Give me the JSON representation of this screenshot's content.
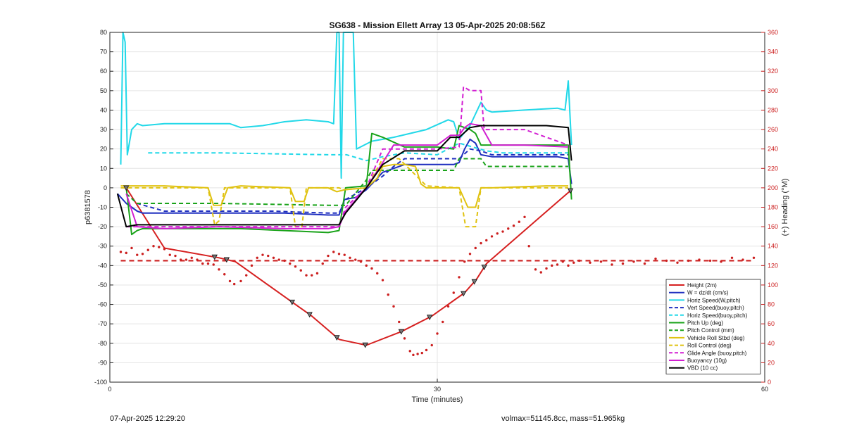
{
  "chart_data": {
    "type": "line",
    "title": "SG638 - Mission Ellett Array 13 05-Apr-2025 20:08:56Z",
    "xlabel": "Time (minutes)",
    "ylabel": "p6381578",
    "ylabel_right": "(+) Heading (°M)",
    "xlim": [
      0,
      60
    ],
    "ylim": [
      -100,
      80
    ],
    "ylim_right": [
      0,
      360
    ],
    "x_ticks": [
      0,
      30,
      60
    ],
    "y_ticks": [
      -100,
      -90,
      -80,
      -70,
      -60,
      -50,
      -40,
      -30,
      -20,
      -10,
      0,
      10,
      20,
      30,
      40,
      50,
      60,
      70,
      80
    ],
    "y_ticks_right": [
      0,
      20,
      40,
      60,
      80,
      100,
      120,
      140,
      160,
      180,
      200,
      220,
      240,
      260,
      280,
      300,
      320,
      340,
      360
    ],
    "grid": true,
    "legend_position": "bottom-right",
    "series": [
      {
        "name": "Height (2m)",
        "color": "#d62020",
        "style": "solid",
        "markers": "triangle",
        "x": [
          1.5,
          5,
          10,
          11.5,
          17,
          18.5,
          21,
          23.5,
          26.7,
          29.5,
          32.5,
          33.6,
          34.5,
          42.3
        ],
        "y": [
          0,
          -31,
          -36,
          -38,
          -60,
          -66,
          -78,
          -81,
          -74,
          -66,
          -54,
          -47,
          -39,
          -1
        ],
        "marker_x": [
          1.5,
          9.6,
          10.7,
          16.7,
          18.3,
          20.8,
          23.4,
          26.7,
          29.3,
          32.4,
          33.4,
          34.3,
          42.2
        ]
      },
      {
        "name": "W = dz/dt (cm/s)",
        "color": "#1f2fbf",
        "style": "solid",
        "x": [
          0.7,
          1.5,
          2.5,
          3,
          8,
          12,
          16,
          20,
          21,
          21.5,
          22.5,
          23.5,
          25,
          27,
          30,
          31.5,
          32,
          32.5,
          33,
          33.5,
          34,
          35,
          38,
          41,
          42,
          42.3
        ],
        "y": [
          -3,
          -8,
          -12,
          -13,
          -13,
          -13,
          -13,
          -14,
          -14,
          -6,
          -5,
          -1,
          8,
          12,
          12,
          12,
          13,
          20,
          25,
          23,
          17,
          16,
          16,
          16,
          15,
          2
        ]
      },
      {
        "name": "Horiz Speed(W,pitch)",
        "color": "#22d8e8",
        "style": "solid",
        "x": [
          1.0,
          1.2,
          1.4,
          1.6,
          2.0,
          2.5,
          3,
          5,
          8,
          11,
          12,
          14,
          16,
          18,
          20,
          20.5,
          20.8,
          21,
          21.2,
          21.4,
          22,
          22.3,
          22.6,
          24,
          26,
          29,
          31,
          31.5,
          32,
          33,
          34,
          34.5,
          35,
          38,
          41,
          41.7,
          42,
          42.3
        ],
        "y": [
          12,
          80,
          75,
          17,
          30,
          33,
          32,
          33,
          33,
          33,
          31,
          32,
          34,
          35,
          34,
          33,
          80,
          80,
          5,
          80,
          80,
          80,
          20,
          24,
          26,
          30,
          35,
          34,
          25,
          32,
          44,
          40,
          39,
          40,
          41,
          40,
          55,
          22
        ]
      },
      {
        "name": "Vert Speed(buoy,pitch)",
        "color": "#1f2fbf",
        "style": "dashed",
        "x": [
          1.5,
          2.5,
          5,
          10,
          15,
          20,
          21,
          21.6,
          23.5,
          25,
          26,
          27,
          30,
          31.5,
          32,
          33,
          34,
          35,
          37,
          42
        ],
        "y": [
          -3,
          -8,
          -12,
          -12,
          -12,
          -13,
          -13,
          -6,
          0,
          6,
          11,
          15,
          15,
          15,
          15,
          20,
          19,
          17,
          17,
          17
        ]
      },
      {
        "name": "Horiz Speed(buoy,pitch)",
        "color": "#22d8e8",
        "style": "dashed",
        "x": [
          3.5,
          10,
          20,
          21.7,
          23.5,
          25,
          27,
          30,
          32,
          34.5,
          36,
          42
        ],
        "y": [
          18,
          18,
          17,
          17,
          14,
          16,
          18,
          17,
          23,
          19,
          18,
          18
        ]
      },
      {
        "name": "Pitch Up (deg)",
        "color": "#1aa31a",
        "style": "solid",
        "x": [
          1.5,
          2.0,
          2.5,
          3,
          8,
          12,
          16,
          20,
          21,
          21.6,
          23.5,
          24,
          25,
          27,
          30,
          31.5,
          32,
          33,
          33.5,
          34,
          35,
          38,
          42,
          42.3
        ],
        "y": [
          0,
          -24,
          -22,
          -21,
          -21,
          -21,
          -22,
          -23,
          -22,
          0,
          1,
          28,
          26,
          21,
          21,
          20,
          32,
          30,
          28,
          22,
          22,
          22,
          22,
          -6
        ]
      },
      {
        "name": "Pitch Control (mm)",
        "color": "#1aa31a",
        "style": "dashed",
        "x": [
          1.5,
          2.5,
          10,
          20,
          21.6,
          23.5,
          24,
          25,
          29,
          31.5,
          32,
          34,
          34.5,
          42
        ],
        "y": [
          -3,
          -8,
          -8,
          -9,
          -9,
          4,
          9,
          9,
          9,
          9,
          15,
          15,
          11,
          11
        ]
      },
      {
        "name": "Vehicle Roll Stbd (deg)",
        "color": "#e0c210",
        "style": "solid",
        "x": [
          1,
          5,
          9,
          9.5,
          10.2,
          10.8,
          12,
          16.5,
          17,
          17.8,
          18.2,
          18.8,
          20,
          20.8,
          21.5,
          23.5,
          24.5,
          25,
          26,
          27,
          28,
          28.5,
          29,
          32,
          32.8,
          33.5,
          34,
          35,
          40,
          42
        ],
        "y": [
          1,
          1,
          0,
          -9,
          -9,
          0,
          1,
          0,
          -7,
          -7,
          0,
          0,
          0,
          -2,
          -1,
          0,
          5,
          11,
          12,
          12,
          11,
          2,
          0,
          0,
          -10,
          -10,
          0,
          0,
          1,
          1
        ]
      },
      {
        "name": "Roll Control (deg)",
        "color": "#e0c210",
        "style": "dashed",
        "x": [
          1,
          9,
          9.6,
          10.0,
          10.5,
          16.5,
          17.0,
          17.6,
          18.0,
          21.0,
          21.4,
          23.5,
          25,
          26.5,
          29,
          32,
          32.6,
          33.5,
          34,
          42
        ],
        "y": [
          0,
          0,
          -19,
          -17,
          0,
          0,
          -20,
          -20,
          0,
          0,
          -1,
          0,
          15,
          15,
          1,
          0,
          -20,
          -20,
          0,
          0
        ]
      },
      {
        "name": "Glide Angle (buoy,pitch)",
        "color": "#d21fd2",
        "style": "dashed",
        "x": [
          1.5,
          2.5,
          10,
          20,
          21,
          21.6,
          23.5,
          25,
          30,
          32,
          32.4,
          33,
          34,
          34.3,
          35,
          38,
          42
        ],
        "y": [
          -20,
          -20,
          -20,
          -20,
          -20,
          -10,
          0,
          20,
          20,
          21,
          52,
          50,
          50,
          30,
          30,
          30,
          22
        ]
      },
      {
        "name": "Buoyancy (10g)",
        "color": "#d21fd2",
        "style": "solid",
        "x": [
          1.5,
          2.5,
          5,
          10,
          16,
          20,
          21,
          21.6,
          23.5,
          25,
          26,
          30,
          31.2,
          32,
          32.5,
          33,
          34,
          35,
          38,
          42
        ],
        "y": [
          -3,
          -20,
          -21,
          -20,
          -21,
          -21,
          -20,
          -12,
          0,
          13,
          22,
          22,
          27,
          27,
          31,
          33,
          32,
          22,
          22,
          21
        ]
      },
      {
        "name": "VBD (10 cc)",
        "color": "#000000",
        "style": "solid",
        "x": [
          0.7,
          1.5,
          2.5,
          10,
          20,
          21.0,
          21.6,
          23.5,
          25,
          27,
          30,
          31.2,
          32,
          33,
          34,
          36,
          40,
          42,
          42.3
        ],
        "y": [
          -3,
          -20,
          -19,
          -19,
          -19,
          -19,
          -13,
          0,
          12,
          19,
          19,
          26,
          26,
          31,
          32,
          32,
          32,
          31,
          14
        ]
      }
    ],
    "heading_series": {
      "name": "Heading",
      "color": "#cc1f1f",
      "points": [
        [
          1.0,
          134
        ],
        [
          1.5,
          133
        ],
        [
          2.0,
          138
        ],
        [
          2.5,
          131
        ],
        [
          3,
          132
        ],
        [
          3.5,
          136
        ],
        [
          4,
          140
        ],
        [
          4.5,
          139
        ],
        [
          5,
          137
        ],
        [
          5.5,
          131
        ],
        [
          6,
          130
        ],
        [
          6.5,
          126
        ],
        [
          7,
          126
        ],
        [
          7.5,
          128
        ],
        [
          8,
          126
        ],
        [
          8.5,
          122
        ],
        [
          9,
          122
        ],
        [
          9.5,
          121
        ],
        [
          10,
          116
        ],
        [
          10.5,
          111
        ],
        [
          11,
          104
        ],
        [
          11.4,
          101
        ],
        [
          12,
          104
        ],
        [
          12.5,
          110
        ],
        [
          13,
          120
        ],
        [
          13.5,
          128
        ],
        [
          14,
          131
        ],
        [
          14.5,
          130
        ],
        [
          15,
          128
        ],
        [
          15.5,
          126
        ],
        [
          16,
          125
        ],
        [
          16.5,
          122
        ],
        [
          17,
          119
        ],
        [
          17.5,
          115
        ],
        [
          18,
          110
        ],
        [
          18.5,
          110
        ],
        [
          19,
          112
        ],
        [
          19.5,
          122
        ],
        [
          20,
          130
        ],
        [
          20.5,
          134
        ],
        [
          21,
          132
        ],
        [
          21.5,
          131
        ],
        [
          22,
          128
        ],
        [
          22.5,
          126
        ],
        [
          23,
          124
        ],
        [
          23.5,
          120
        ],
        [
          24,
          117
        ],
        [
          24.5,
          112
        ],
        [
          25,
          105
        ],
        [
          25.5,
          90
        ],
        [
          26,
          78
        ],
        [
          26.5,
          62
        ],
        [
          27,
          45
        ],
        [
          27.5,
          32
        ],
        [
          27.8,
          28
        ],
        [
          28.2,
          29
        ],
        [
          28.6,
          30
        ],
        [
          29,
          33
        ],
        [
          29.5,
          38
        ],
        [
          30,
          50
        ],
        [
          30.5,
          62
        ],
        [
          31,
          78
        ],
        [
          31.5,
          92
        ],
        [
          32,
          108
        ],
        [
          32.5,
          124
        ],
        [
          33,
          132
        ],
        [
          33.5,
          138
        ],
        [
          34,
          143
        ],
        [
          34.5,
          146
        ],
        [
          35,
          150
        ],
        [
          35.5,
          153
        ],
        [
          36,
          155
        ],
        [
          36.5,
          158
        ],
        [
          37,
          161
        ],
        [
          37.5,
          165
        ],
        [
          38,
          170
        ],
        [
          38.4,
          140
        ],
        [
          39,
          116
        ],
        [
          39.5,
          113
        ],
        [
          40,
          117
        ],
        [
          40.5,
          120
        ],
        [
          41,
          121
        ],
        [
          41.5,
          124
        ],
        [
          42,
          120
        ],
        [
          42.5,
          123
        ],
        [
          43,
          125
        ],
        [
          44,
          123
        ],
        [
          45,
          124
        ],
        [
          46,
          121
        ],
        [
          47,
          122
        ],
        [
          48,
          124
        ],
        [
          49,
          122
        ],
        [
          50,
          127
        ],
        [
          51,
          125
        ],
        [
          52,
          123
        ],
        [
          53,
          125
        ],
        [
          54,
          126
        ],
        [
          55,
          125
        ],
        [
          56,
          124
        ],
        [
          57,
          128
        ],
        [
          58,
          126
        ],
        [
          59,
          128
        ]
      ],
      "mean_line": {
        "value": 125,
        "x": [
          1.0,
          59.0
        ]
      }
    }
  },
  "footer": {
    "left": "07-Apr-2025 12:29:20",
    "right": "volmax=51145.8cc, mass=51.965kg"
  }
}
